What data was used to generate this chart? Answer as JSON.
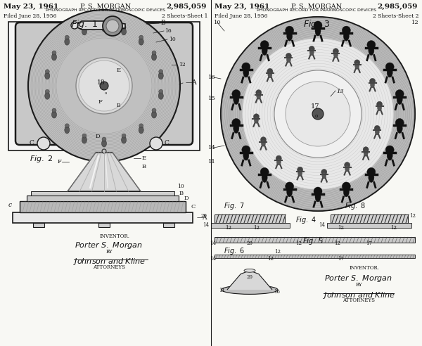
{
  "bg_color": "#f8f8f4",
  "line_color": "#1a1a1a",
  "text_color": "#111111",
  "grey_light": "#d4d4d4",
  "grey_mid": "#b0b0b0",
  "grey_dark": "#888888",
  "white": "#f5f5f5",
  "header_date": "May 23, 1961",
  "header_name": "P. S. MORGAN",
  "header_patent": "2,985,059",
  "header_title": "PHONOGRAPH RECORD FOR PRAXINOSCOPIC DEVICES",
  "filed1": "Filed June 28, 1956",
  "sheets1": "2 Sheets-Sheet 1",
  "filed2": "Filed June 28, 1956",
  "sheets2": "2 Sheets-Sheet 2"
}
